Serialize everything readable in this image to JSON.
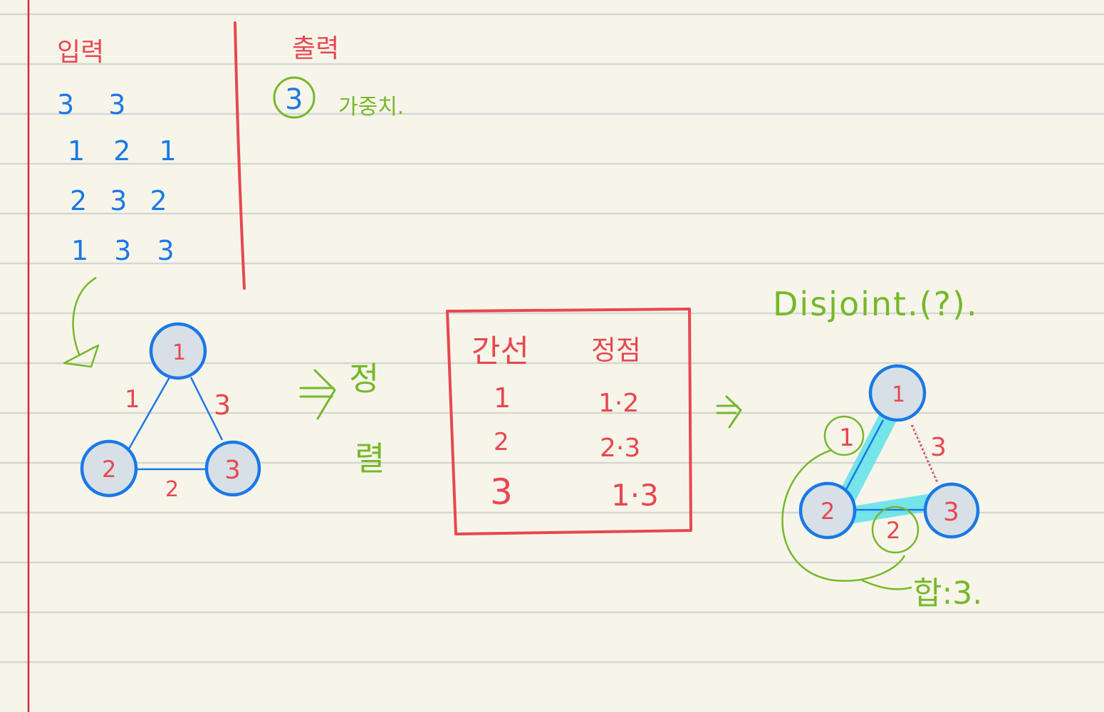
{
  "input": {
    "heading": "입력",
    "lines": [
      "3 3",
      "1 2 1",
      "2 3 2",
      "1 3 3"
    ]
  },
  "output": {
    "heading": "출력",
    "value": "3",
    "note": "가중치."
  },
  "graph": {
    "nodes": [
      "1",
      "2",
      "3"
    ],
    "edge_weights": {
      "n1_n2": "1",
      "n1_n3": "3",
      "n2_n3": "2"
    }
  },
  "sort_label": {
    "char1": "정",
    "char2": "렬"
  },
  "table": {
    "headers": [
      "간선",
      "정점"
    ],
    "rows": [
      {
        "weight": "1",
        "vertices": "1·2"
      },
      {
        "weight": "2",
        "vertices": "2·3"
      },
      {
        "weight": "3",
        "vertices": "1·3"
      }
    ]
  },
  "disjoint_label": "Disjoint.(?).",
  "mst": {
    "nodes": [
      "1",
      "2",
      "3"
    ],
    "selected_weights": [
      "1",
      "2"
    ],
    "rejected_weight": "3",
    "sum_text": "합:3."
  },
  "colors": {
    "paper": "#f7f5ea",
    "rule_line": "#d5d7d2",
    "margin_line": "#d6283a",
    "ink_blue": "#1a78e6",
    "ink_red": "#e8474f",
    "ink_green": "#76b82a",
    "highlight": "#5fe3ea"
  }
}
